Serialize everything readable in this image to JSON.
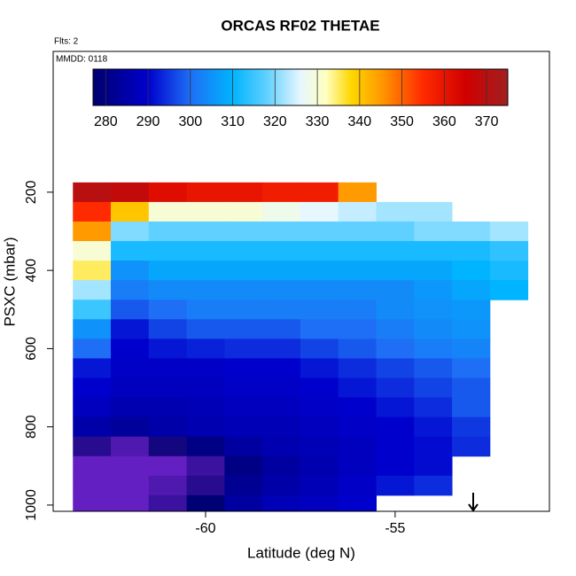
{
  "chart_data": {
    "type": "heatmap",
    "title": "ORCAS RF02 THETAE",
    "annotations": [
      "Flts: 2",
      "MMDD: 0118"
    ],
    "x_label": "Latitude (deg N)",
    "y_label": "PSXC (mbar)",
    "xlim": [
      -64.02,
      -50.93
    ],
    "xticks": [
      -60,
      -55
    ],
    "ylim": [
      1016,
      -160
    ],
    "yticks": [
      200,
      400,
      600,
      800,
      1000
    ],
    "x_edges": [
      -63.5,
      -62.5,
      -61.5,
      -60.5,
      -59.5,
      -58.5,
      -57.5,
      -56.5,
      -55.5,
      -54.5,
      -53.5,
      -52.5,
      -51.5
    ],
    "y": [
      200,
      250,
      300,
      350,
      400,
      450,
      500,
      550,
      600,
      650,
      700,
      750,
      800,
      850,
      900,
      950,
      1000
    ],
    "y_bin_height": 50,
    "z": [
      [
        370,
        368,
        362,
        360,
        360,
        358,
        358,
        345,
        null,
        null,
        null,
        null
      ],
      [
        355,
        340,
        330,
        330,
        330,
        328,
        326,
        324,
        322,
        322,
        null,
        null
      ],
      [
        345,
        320,
        318,
        318,
        318,
        318,
        318,
        318,
        318,
        320,
        320,
        322
      ],
      [
        330,
        312,
        312,
        312,
        312,
        312,
        312,
        312,
        312,
        312,
        312,
        314
      ],
      [
        335,
        305,
        308,
        308,
        308,
        308,
        308,
        308,
        308,
        308,
        310,
        312
      ],
      [
        322,
        302,
        304,
        304,
        304,
        304,
        304,
        304,
        304,
        306,
        308,
        310
      ],
      [
        315,
        298,
        300,
        302,
        302,
        302,
        302,
        302,
        304,
        305,
        306,
        null
      ],
      [
        305,
        292,
        296,
        298,
        298,
        298,
        300,
        300,
        302,
        304,
        305,
        null
      ],
      [
        300,
        290,
        292,
        293,
        294,
        294,
        296,
        298,
        300,
        302,
        303,
        null
      ],
      [
        292,
        289,
        289,
        289,
        290,
        290,
        292,
        294,
        296,
        298,
        300,
        null
      ],
      [
        290,
        288,
        288,
        288,
        289,
        289,
        290,
        292,
        294,
        296,
        298,
        null
      ],
      [
        288,
        286,
        286,
        287,
        288,
        288,
        289,
        290,
        292,
        294,
        298,
        null
      ],
      [
        285,
        283,
        285,
        286,
        287,
        287,
        288,
        289,
        290,
        292,
        295,
        null
      ],
      [
        275,
        273,
        276,
        280,
        284,
        286,
        287,
        288,
        290,
        291,
        294,
        null
      ],
      [
        272,
        272,
        272,
        274,
        280,
        284,
        286,
        288,
        290,
        291,
        null,
        null
      ],
      [
        272,
        272,
        273,
        275,
        282,
        285,
        287,
        289,
        292,
        294,
        null,
        null
      ],
      [
        272,
        272,
        274,
        278,
        284,
        287,
        288,
        290,
        null,
        null,
        null,
        null
      ]
    ],
    "zlim": [
      277,
      375
    ],
    "zticks": [
      280,
      290,
      300,
      310,
      320,
      330,
      340,
      350,
      360,
      370
    ],
    "colorscale": [
      [
        270,
        "#8a2be2"
      ],
      [
        277,
        "#00006e"
      ],
      [
        290,
        "#0000cd"
      ],
      [
        300,
        "#1e6ff5"
      ],
      [
        310,
        "#00b4ff"
      ],
      [
        318,
        "#5fd0ff"
      ],
      [
        326,
        "#e6f7ff"
      ],
      [
        332,
        "#ffffc0"
      ],
      [
        338,
        "#ffd700"
      ],
      [
        345,
        "#ff9a00"
      ],
      [
        355,
        "#ff2a00"
      ],
      [
        365,
        "#d00000"
      ],
      [
        375,
        "#a02020"
      ]
    ]
  }
}
